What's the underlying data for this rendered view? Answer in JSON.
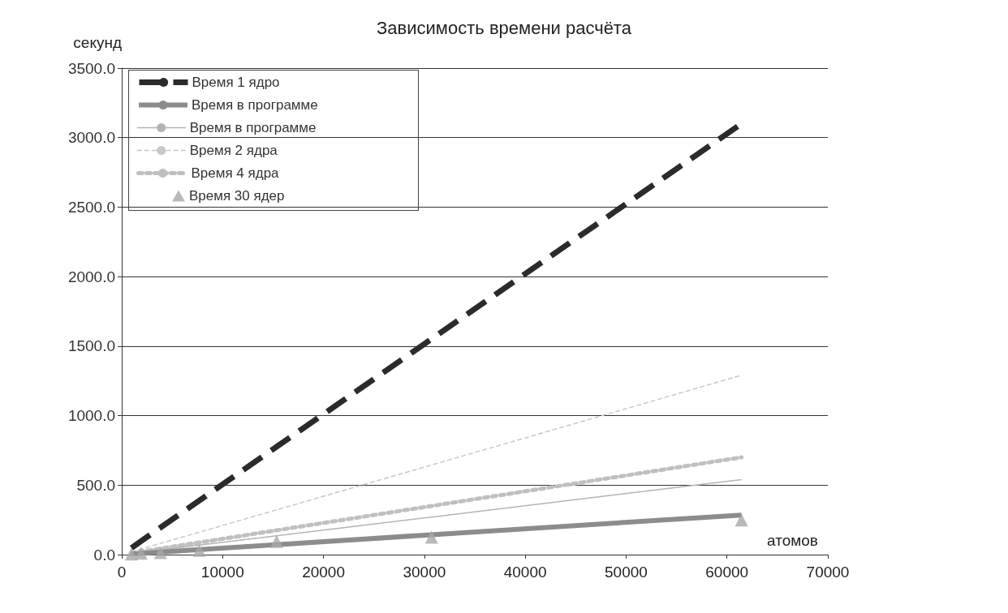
{
  "chart_data": {
    "type": "line",
    "title": "Зависимость времени расчёта",
    "xlabel": "атомов",
    "ylabel": "секунд",
    "x": [
      960,
      1920,
      3840,
      7680,
      15360,
      30720,
      61440
    ],
    "series": [
      {
        "name": "Время 1 ядро",
        "color": "#2b2b2b",
        "line_style": "dashed",
        "marker": "none",
        "values": [
          48,
          97,
          194,
          388,
          776,
          1552,
          3100
        ]
      },
      {
        "name": "Время в программе",
        "color": "#8c8c8c",
        "line_style": "solid",
        "marker": "none",
        "values": [
          5,
          9,
          18,
          36,
          72,
          143,
          285
        ]
      },
      {
        "name": "Время в программе",
        "color": "#b4b4b4",
        "line_style": "solid",
        "marker": "none",
        "values": [
          8,
          17,
          34,
          68,
          135,
          270,
          540
        ]
      },
      {
        "name": "Время 2 ядра",
        "color": "#c8c8c8",
        "line_style": "dashed",
        "marker": "none",
        "values": [
          20,
          40,
          81,
          161,
          322,
          645,
          1290
        ]
      },
      {
        "name": "Время 4 ядра",
        "color": "#c0c0c0",
        "line_style": "dotted",
        "marker": "none",
        "values": [
          11,
          22,
          44,
          87,
          175,
          350,
          700
        ]
      },
      {
        "name": "Время 30 ядер",
        "type": "scatter",
        "color": "#a8a8a8",
        "marker": "triangle",
        "values": [
          5,
          10,
          15,
          30,
          95,
          125,
          250
        ]
      }
    ],
    "xlim": [
      0,
      70000
    ],
    "xticks": [
      0,
      10000,
      20000,
      30000,
      40000,
      50000,
      60000,
      70000
    ],
    "ylim": [
      0,
      3500
    ],
    "yticks": [
      {
        "value": 0,
        "label": "0.0"
      },
      {
        "value": 500,
        "label": "500.0"
      },
      {
        "value": 1000,
        "label": "1000.0"
      },
      {
        "value": 1500,
        "label": "1500.0"
      },
      {
        "value": 2000,
        "label": "2000.0"
      },
      {
        "value": 2500,
        "label": "2500.0"
      },
      {
        "value": 3000,
        "label": "3000.0"
      },
      {
        "value": 3500,
        "label": "3500.0"
      }
    ],
    "grid": "y",
    "legend": "top left"
  }
}
